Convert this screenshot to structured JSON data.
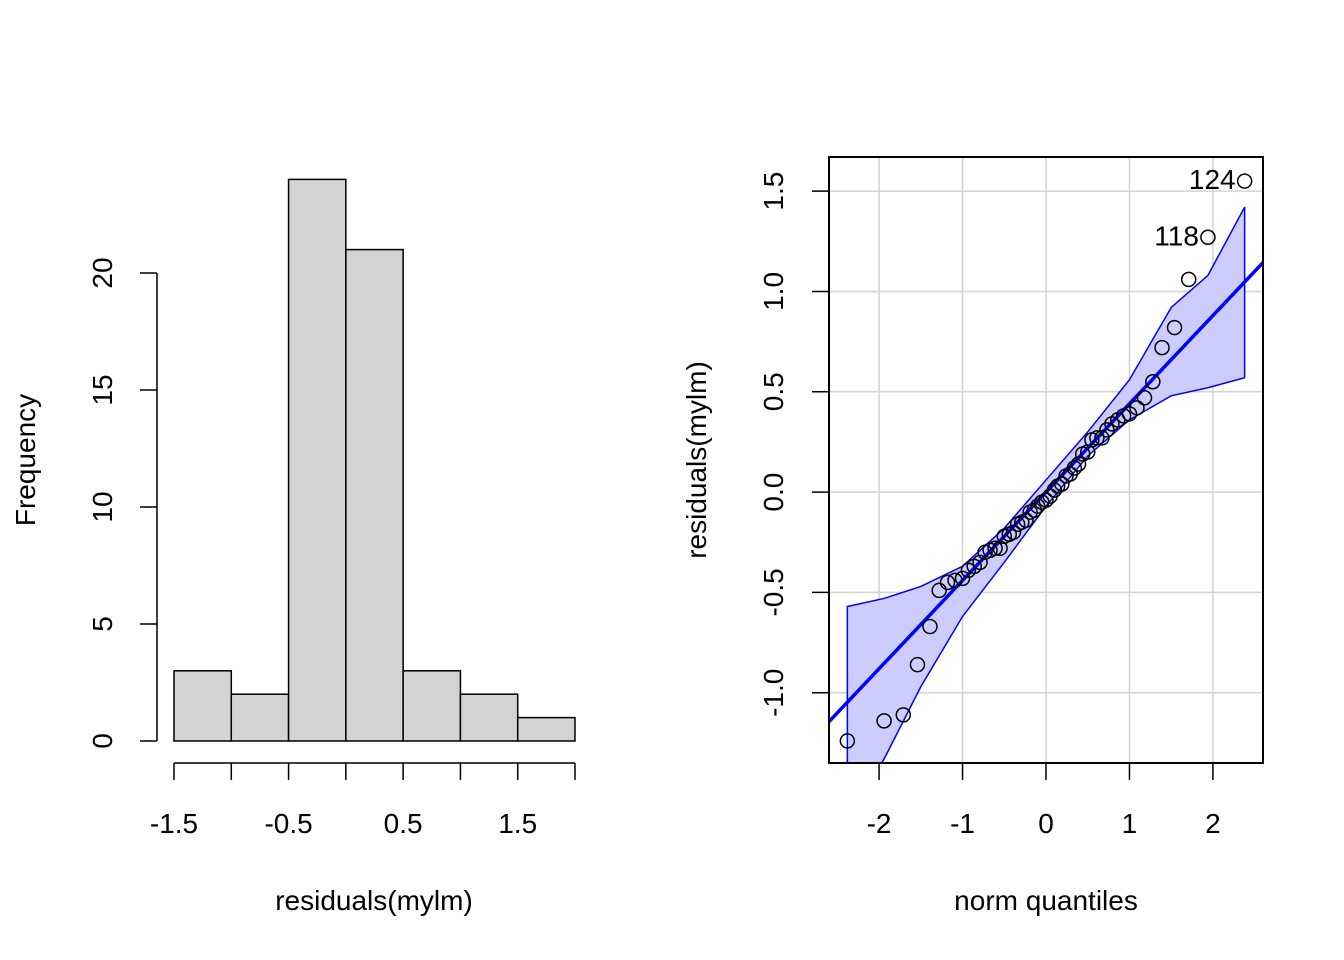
{
  "chart_data": [
    {
      "type": "bar",
      "subtype": "histogram",
      "title": "",
      "xlabel": "residuals(mylm)",
      "ylabel": "Frequency",
      "bin_edges": [
        -1.5,
        -1.0,
        -0.5,
        0.0,
        0.5,
        1.0,
        1.5,
        2.0
      ],
      "values": [
        3,
        2,
        24,
        21,
        3,
        2,
        1
      ],
      "xlim": [
        -1.5,
        2.0
      ],
      "ylim": [
        0,
        24
      ],
      "x_tick_labels": [
        "-1.5",
        "-0.5",
        "0.5",
        "1.5"
      ],
      "x_tick_marks": [
        -1.5,
        -1.0,
        -0.5,
        0.0,
        0.5,
        1.0,
        1.5,
        2.0
      ],
      "y_tick_labels": [
        "0",
        "5",
        "10",
        "15",
        "20"
      ],
      "grid": false,
      "bar_fill": "#d3d3d3"
    },
    {
      "type": "scatter",
      "subtype": "qqplot",
      "title": "",
      "xlabel": "norm quantiles",
      "ylabel": "residuals(mylm)",
      "xlim": [
        -2.6,
        2.6
      ],
      "ylim": [
        -1.35,
        1.67
      ],
      "x_tick_labels": [
        "-2",
        "-1",
        "0",
        "1",
        "2"
      ],
      "y_tick_labels": [
        "-1.0",
        "-0.5",
        "0.0",
        "0.5",
        "1.0",
        "1.5"
      ],
      "grid": true,
      "line_color": "#0000ff",
      "band_fill": "#ccccff",
      "reference_line": {
        "slope": 0.44,
        "intercept": 0.0
      },
      "envelope": [
        {
          "x": -2.38,
          "upper": -0.57,
          "lower": -1.6
        },
        {
          "x": -1.94,
          "upper": -0.53,
          "lower": -1.33
        },
        {
          "x": -1.5,
          "upper": -0.47,
          "lower": -0.97
        },
        {
          "x": -1.0,
          "upper": -0.37,
          "lower": -0.62
        },
        {
          "x": -0.5,
          "upper": -0.18,
          "lower": -0.35
        },
        {
          "x": 0.0,
          "upper": 0.06,
          "lower": -0.07
        },
        {
          "x": 0.5,
          "upper": 0.3,
          "lower": 0.18
        },
        {
          "x": 1.0,
          "upper": 0.56,
          "lower": 0.36
        },
        {
          "x": 1.5,
          "upper": 0.92,
          "lower": 0.48
        },
        {
          "x": 1.94,
          "upper": 1.08,
          "lower": 0.52
        },
        {
          "x": 2.38,
          "upper": 1.42,
          "lower": 0.57
        }
      ],
      "points": [
        {
          "x": -2.38,
          "y": -1.24
        },
        {
          "x": -1.94,
          "y": -1.14
        },
        {
          "x": -1.71,
          "y": -1.11
        },
        {
          "x": -1.54,
          "y": -0.86
        },
        {
          "x": -1.39,
          "y": -0.67
        },
        {
          "x": -1.28,
          "y": -0.49
        },
        {
          "x": -1.18,
          "y": -0.45
        },
        {
          "x": -1.09,
          "y": -0.44
        },
        {
          "x": -1.0,
          "y": -0.43
        },
        {
          "x": -0.93,
          "y": -0.39
        },
        {
          "x": -0.86,
          "y": -0.37
        },
        {
          "x": -0.79,
          "y": -0.35
        },
        {
          "x": -0.73,
          "y": -0.3
        },
        {
          "x": -0.67,
          "y": -0.29
        },
        {
          "x": -0.61,
          "y": -0.28
        },
        {
          "x": -0.55,
          "y": -0.28
        },
        {
          "x": -0.5,
          "y": -0.22
        },
        {
          "x": -0.44,
          "y": -0.21
        },
        {
          "x": -0.39,
          "y": -0.2
        },
        {
          "x": -0.34,
          "y": -0.16
        },
        {
          "x": -0.29,
          "y": -0.15
        },
        {
          "x": -0.24,
          "y": -0.14
        },
        {
          "x": -0.19,
          "y": -0.1
        },
        {
          "x": -0.14,
          "y": -0.09
        },
        {
          "x": -0.1,
          "y": -0.07
        },
        {
          "x": -0.05,
          "y": -0.05
        },
        {
          "x": 0.0,
          "y": -0.04
        },
        {
          "x": 0.05,
          "y": -0.02
        },
        {
          "x": 0.1,
          "y": 0.01
        },
        {
          "x": 0.14,
          "y": 0.03
        },
        {
          "x": 0.19,
          "y": 0.04
        },
        {
          "x": 0.24,
          "y": 0.08
        },
        {
          "x": 0.29,
          "y": 0.09
        },
        {
          "x": 0.34,
          "y": 0.12
        },
        {
          "x": 0.39,
          "y": 0.14
        },
        {
          "x": 0.44,
          "y": 0.19
        },
        {
          "x": 0.5,
          "y": 0.2
        },
        {
          "x": 0.55,
          "y": 0.26
        },
        {
          "x": 0.61,
          "y": 0.27
        },
        {
          "x": 0.67,
          "y": 0.27
        },
        {
          "x": 0.73,
          "y": 0.31
        },
        {
          "x": 0.79,
          "y": 0.34
        },
        {
          "x": 0.86,
          "y": 0.36
        },
        {
          "x": 0.93,
          "y": 0.38
        },
        {
          "x": 1.0,
          "y": 0.39
        },
        {
          "x": 1.09,
          "y": 0.42
        },
        {
          "x": 1.18,
          "y": 0.47
        },
        {
          "x": 1.28,
          "y": 0.55
        },
        {
          "x": 1.39,
          "y": 0.72
        },
        {
          "x": 1.54,
          "y": 0.82
        },
        {
          "x": 1.71,
          "y": 1.06
        },
        {
          "x": 1.94,
          "y": 1.27,
          "label": "118"
        },
        {
          "x": 2.38,
          "y": 1.55,
          "label": "124"
        }
      ]
    }
  ]
}
